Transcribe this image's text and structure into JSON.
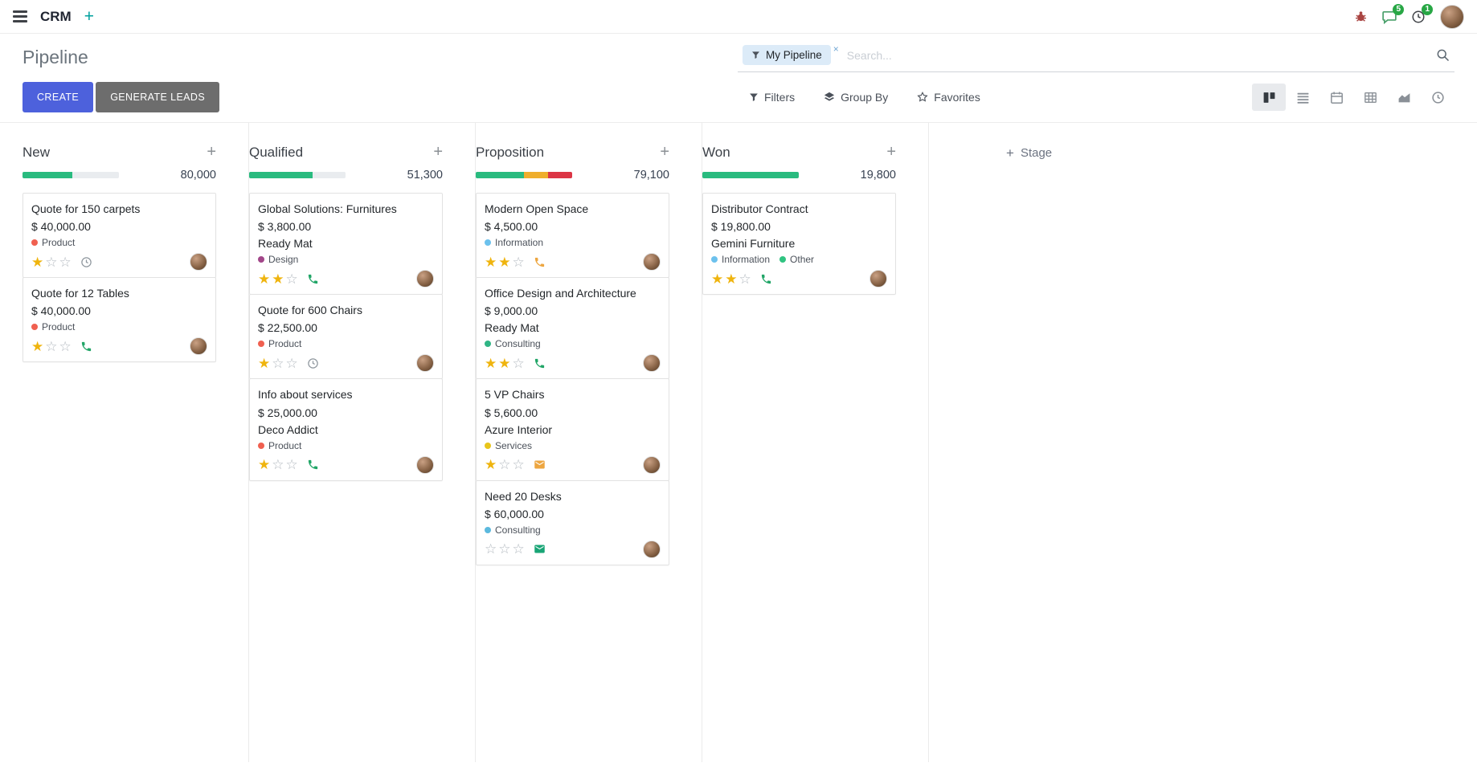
{
  "colors": {
    "primary": "#4d61dc",
    "muted_btn": "#6d6d6d",
    "badge_green": "#28a745",
    "star_filled": "#efb40e",
    "progress_green": "#29bb7f",
    "progress_yellow": "#efae2c",
    "progress_red": "#dc3545"
  },
  "topbar": {
    "app_name": "CRM",
    "messages_badge": "5",
    "activities_badge": "1"
  },
  "page": {
    "title": "Pipeline"
  },
  "search": {
    "facet_label": "My Pipeline",
    "placeholder": "Search..."
  },
  "actions": {
    "create": "CREATE",
    "generate_leads": "GENERATE LEADS"
  },
  "controls": {
    "filters": "Filters",
    "group_by": "Group By",
    "favorites": "Favorites"
  },
  "view_switcher": [
    {
      "name": "kanban",
      "active": true
    },
    {
      "name": "list",
      "active": false
    },
    {
      "name": "calendar",
      "active": false
    },
    {
      "name": "pivot",
      "active": false
    },
    {
      "name": "graph",
      "active": false
    },
    {
      "name": "activity",
      "active": false
    }
  ],
  "kanban": {
    "stage_add_label": "Stage",
    "columns": [
      {
        "name": "New",
        "total": "80,000",
        "progress": [
          {
            "status": "green",
            "pct": 52
          }
        ],
        "cards": [
          {
            "title": "Quote for 150 carpets",
            "amount": "$ 40,000.00",
            "tags": [
              {
                "label": "Product",
                "color": "#f06050"
              }
            ],
            "stars": 1,
            "activity": {
              "type": "clock",
              "color": "#8f979e"
            }
          },
          {
            "title": "Quote for 12 Tables",
            "amount": "$ 40,000.00",
            "tags": [
              {
                "label": "Product",
                "color": "#f06050"
              }
            ],
            "stars": 1,
            "activity": {
              "type": "phone",
              "color": "#21a567"
            }
          }
        ]
      },
      {
        "name": "Qualified",
        "total": "51,300",
        "progress": [
          {
            "status": "green",
            "pct": 66
          }
        ],
        "cards": [
          {
            "title": "Global Solutions: Furnitures",
            "amount": "$ 3,800.00",
            "partner": "Ready Mat",
            "tags": [
              {
                "label": "Design",
                "color": "#a24689"
              }
            ],
            "stars": 2,
            "activity": {
              "type": "phone",
              "color": "#21a567"
            }
          },
          {
            "title": "Quote for 600 Chairs",
            "amount": "$ 22,500.00",
            "tags": [
              {
                "label": "Product",
                "color": "#f06050"
              }
            ],
            "stars": 1,
            "activity": {
              "type": "clock",
              "color": "#8f979e"
            }
          },
          {
            "title": "Info about services",
            "amount": "$ 25,000.00",
            "partner": "Deco Addict",
            "tags": [
              {
                "label": "Product",
                "color": "#f06050"
              }
            ],
            "stars": 1,
            "activity": {
              "type": "phone",
              "color": "#21a567"
            }
          }
        ]
      },
      {
        "name": "Proposition",
        "total": "79,100",
        "progress": [
          {
            "status": "green",
            "pct": 50
          },
          {
            "status": "yellow",
            "pct": 25
          },
          {
            "status": "red",
            "pct": 25
          }
        ],
        "cards": [
          {
            "title": "Modern Open Space",
            "amount": "$ 4,500.00",
            "tags": [
              {
                "label": "Information",
                "color": "#6cc1ed"
              }
            ],
            "stars": 2,
            "activity": {
              "type": "phone",
              "color": "#eda640"
            }
          },
          {
            "title": "Office Design and Architecture",
            "amount": "$ 9,000.00",
            "partner": "Ready Mat",
            "tags": [
              {
                "label": "Consulting",
                "color": "#30b585"
              }
            ],
            "stars": 2,
            "activity": {
              "type": "phone",
              "color": "#21a567"
            }
          },
          {
            "title": "5 VP Chairs",
            "amount": "$ 5,600.00",
            "partner": "Azure Interior",
            "tags": [
              {
                "label": "Services",
                "color": "#e8c51b"
              }
            ],
            "stars": 1,
            "activity": {
              "type": "envelope",
              "color": "#eda640"
            }
          },
          {
            "title": "Need 20 Desks",
            "amount": "$ 60,000.00",
            "tags": [
              {
                "label": "Consulting",
                "color": "#5cb9de"
              }
            ],
            "stars": 0,
            "activity": {
              "type": "envelope",
              "color": "#19a576"
            }
          }
        ]
      },
      {
        "name": "Won",
        "total": "19,800",
        "progress": [
          {
            "status": "green",
            "pct": 100
          }
        ],
        "cards": [
          {
            "title": "Distributor Contract",
            "amount": "$ 19,800.00",
            "partner": "Gemini Furniture",
            "tags": [
              {
                "label": "Information",
                "color": "#6cc1ed"
              },
              {
                "label": "Other",
                "color": "#30c381"
              }
            ],
            "stars": 2,
            "activity": {
              "type": "phone",
              "color": "#21a567"
            }
          }
        ]
      }
    ]
  }
}
